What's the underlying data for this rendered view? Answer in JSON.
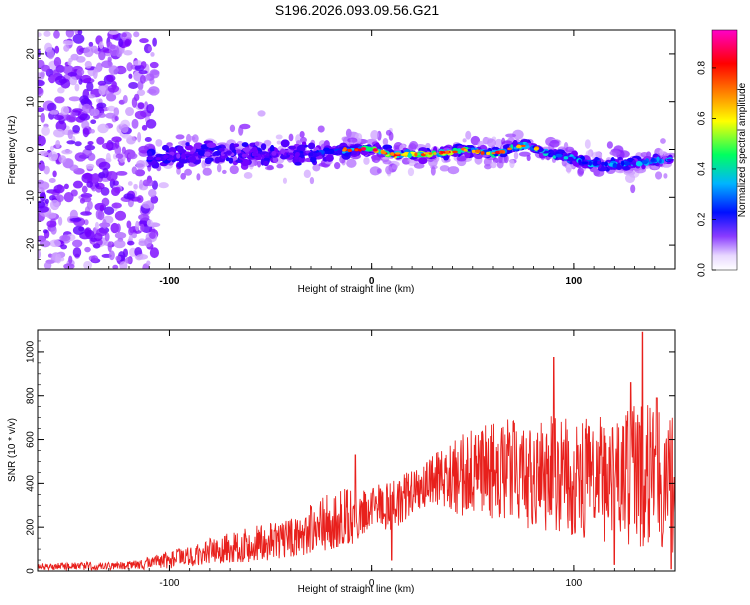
{
  "title": "S196.2026.093.09.56.G21",
  "chart_data": [
    {
      "type": "heatmap",
      "name": "spectrogram",
      "xlabel": "Height of straight line (km)",
      "ylabel": "Frequency (Hz)",
      "xlim": [
        -165,
        150
      ],
      "ylim": [
        -25,
        25
      ],
      "xticks": [
        -100,
        0,
        100
      ],
      "yticks": [
        -20,
        -10,
        0,
        10,
        20
      ],
      "colorbar": {
        "label": "Normalized spectral amplitude",
        "range": [
          0.0,
          0.95
        ],
        "ticks": [
          "0.0",
          "0.2",
          "0.4",
          "0.6",
          "0.8"
        ],
        "tick_values": [
          0.0,
          0.2,
          0.4,
          0.6,
          0.8
        ],
        "colors": [
          "#ffffff",
          "#7a00ff",
          "#0000ff",
          "#00c8ff",
          "#00ff60",
          "#ffff00",
          "#ff7f00",
          "#ff0000",
          "#ff00c0"
        ]
      },
      "ridge": [
        {
          "x": -110,
          "f": -2,
          "a": 0.25
        },
        {
          "x": -90,
          "f": -1,
          "a": 0.2
        },
        {
          "x": -70,
          "f": -1,
          "a": 0.2
        },
        {
          "x": -50,
          "f": -1,
          "a": 0.2
        },
        {
          "x": -30,
          "f": -1,
          "a": 0.2
        },
        {
          "x": -15,
          "f": 0,
          "a": 0.4
        },
        {
          "x": 0,
          "f": 0,
          "a": 0.5
        },
        {
          "x": 10,
          "f": -1,
          "a": 0.6
        },
        {
          "x": 20,
          "f": -1,
          "a": 0.7
        },
        {
          "x": 30,
          "f": -1,
          "a": 0.65
        },
        {
          "x": 45,
          "f": 0,
          "a": 0.5
        },
        {
          "x": 60,
          "f": -1,
          "a": 0.45
        },
        {
          "x": 75,
          "f": 1,
          "a": 0.4
        },
        {
          "x": 90,
          "f": -1,
          "a": 0.4
        },
        {
          "x": 110,
          "f": -3,
          "a": 0.35
        },
        {
          "x": 130,
          "f": -3,
          "a": 0.35
        },
        {
          "x": 145,
          "f": -2,
          "a": 0.35
        }
      ]
    },
    {
      "type": "line",
      "name": "snr",
      "xlabel": "Height of straight line (km)",
      "ylabel": "SNR (10 * v/v)",
      "xlim": [
        -165,
        150
      ],
      "ylim": [
        0,
        1100
      ],
      "xticks": [
        -100,
        0,
        100
      ],
      "yticks": [
        0,
        200,
        400,
        600,
        800,
        1000
      ],
      "color": "#e8201c",
      "envelope": [
        {
          "x": -165,
          "base": 20,
          "amp": 15
        },
        {
          "x": -120,
          "base": 25,
          "amp": 20
        },
        {
          "x": -100,
          "base": 50,
          "amp": 40
        },
        {
          "x": -80,
          "base": 90,
          "amp": 60
        },
        {
          "x": -60,
          "base": 120,
          "amp": 80
        },
        {
          "x": -40,
          "base": 150,
          "amp": 90
        },
        {
          "x": -25,
          "base": 220,
          "amp": 130
        },
        {
          "x": -10,
          "base": 250,
          "amp": 140
        },
        {
          "x": 0,
          "base": 300,
          "amp": 90
        },
        {
          "x": 10,
          "base": 300,
          "amp": 120
        },
        {
          "x": 20,
          "base": 360,
          "amp": 100
        },
        {
          "x": 30,
          "base": 420,
          "amp": 110
        },
        {
          "x": 45,
          "base": 440,
          "amp": 190
        },
        {
          "x": 60,
          "base": 460,
          "amp": 230
        },
        {
          "x": 80,
          "base": 450,
          "amp": 260
        },
        {
          "x": 100,
          "base": 430,
          "amp": 280
        },
        {
          "x": 120,
          "base": 420,
          "amp": 300
        },
        {
          "x": 135,
          "base": 440,
          "amp": 330
        },
        {
          "x": 150,
          "base": 380,
          "amp": 320
        }
      ],
      "peaks": [
        {
          "x": -8,
          "y": 530
        },
        {
          "x": 90,
          "y": 975
        },
        {
          "x": 134,
          "y": 1090
        },
        {
          "x": 128,
          "y": 860
        },
        {
          "x": 141,
          "y": 790
        }
      ],
      "dips": [
        {
          "x": 10,
          "y": 50
        },
        {
          "x": 120,
          "y": 30
        },
        {
          "x": 148,
          "y": 10
        }
      ]
    }
  ]
}
